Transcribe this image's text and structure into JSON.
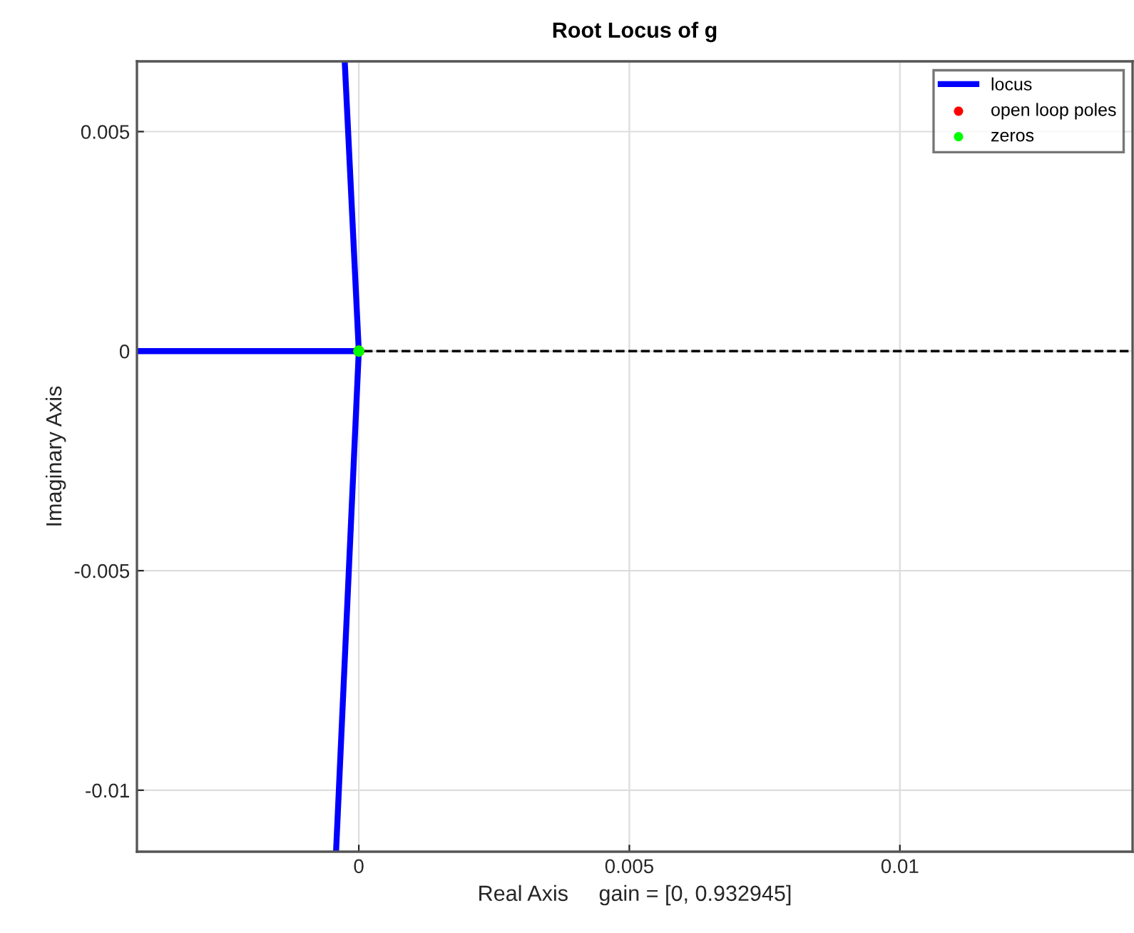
{
  "chart_data": {
    "type": "line",
    "title": "Root Locus of g",
    "xlabel": "Real Axis     gain = [0, 0.932945]",
    "ylabel": "Imaginary Axis",
    "series": [
      {
        "name": "locus",
        "color": "#0000ff",
        "x": [
          -0.0041,
          0,
          null,
          -0.00026,
          0,
          -0.00042
        ],
        "values": [
          0,
          0,
          null,
          0.0066,
          0,
          -0.0114
        ]
      },
      {
        "name": "open loop poles",
        "type": "scatter",
        "color": "#ff0000",
        "x": [
          0
        ],
        "values": [
          0
        ]
      },
      {
        "name": "zeros",
        "type": "scatter",
        "color": "#00ff00",
        "x": [
          0
        ],
        "values": [
          0
        ]
      }
    ],
    "xlim": [
      -0.0041,
      0.0143
    ],
    "ylim": [
      -0.0114,
      0.0066
    ],
    "xticks": [
      0,
      0.005,
      0.01
    ],
    "yticks": [
      -0.01,
      -0.005,
      0,
      0.005
    ],
    "ref_lines": [
      {
        "axis": "y",
        "value": 0,
        "color": "#000000",
        "line_style": "dashed"
      }
    ],
    "grid": true,
    "legend": "top right"
  }
}
